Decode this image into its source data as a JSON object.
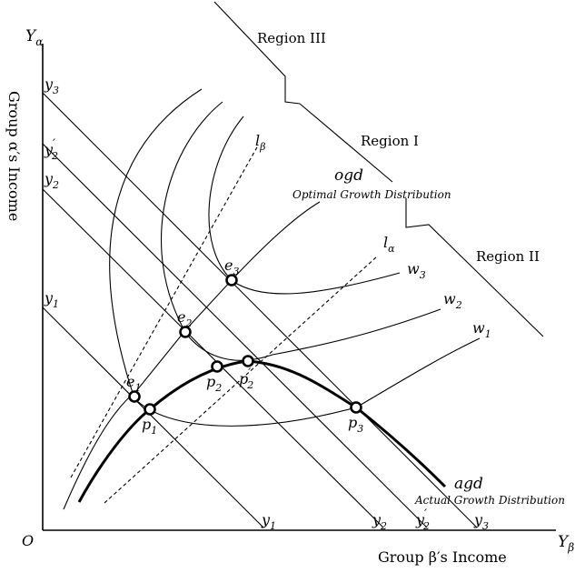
{
  "axes": {
    "y_axis_symbol": "Y",
    "y_axis_sub": "α",
    "x_axis_symbol": "Y",
    "x_axis_sub": "β",
    "origin": "O",
    "y_axis_title": "Group α′s Income",
    "x_axis_title": "Group β′s Income"
  },
  "regions": {
    "region_iii": "Region III",
    "region_i": "Region I",
    "region_ii": "Region II"
  },
  "curves": {
    "ogd": "ogd",
    "ogd_desc": "Optimal Growth Distribution",
    "agd": "agd",
    "agd_desc": "Actual Growth Distribution",
    "l_beta_main": "l",
    "l_beta_sub": "β",
    "l_alpha_main": "l",
    "l_alpha_sub": "α",
    "w3_main": "w",
    "w3_sub": "3",
    "w2_main": "w",
    "w2_sub": "2",
    "w1_main": "w",
    "w1_sub": "1"
  },
  "budget_lines": {
    "y3_main": "y",
    "y3_sub": "3",
    "y2p_main": "y",
    "y2p_sub": "2",
    "y2p_prime": "′",
    "y2_main": "y",
    "y2_sub": "2",
    "y1_main": "y",
    "y1_sub": "1"
  },
  "points": {
    "e1_main": "e",
    "e1_sub": "1",
    "e2_main": "e",
    "e2_sub": "2",
    "e3_main": "e",
    "e3_sub": "3",
    "p1_main": "p",
    "p1_sub": "1",
    "p2_main": "p",
    "p2_sub": "2",
    "p2p_main": "p",
    "p2p_sub": "2",
    "p2p_prime": "′",
    "p3_main": "p",
    "p3_sub": "3"
  }
}
